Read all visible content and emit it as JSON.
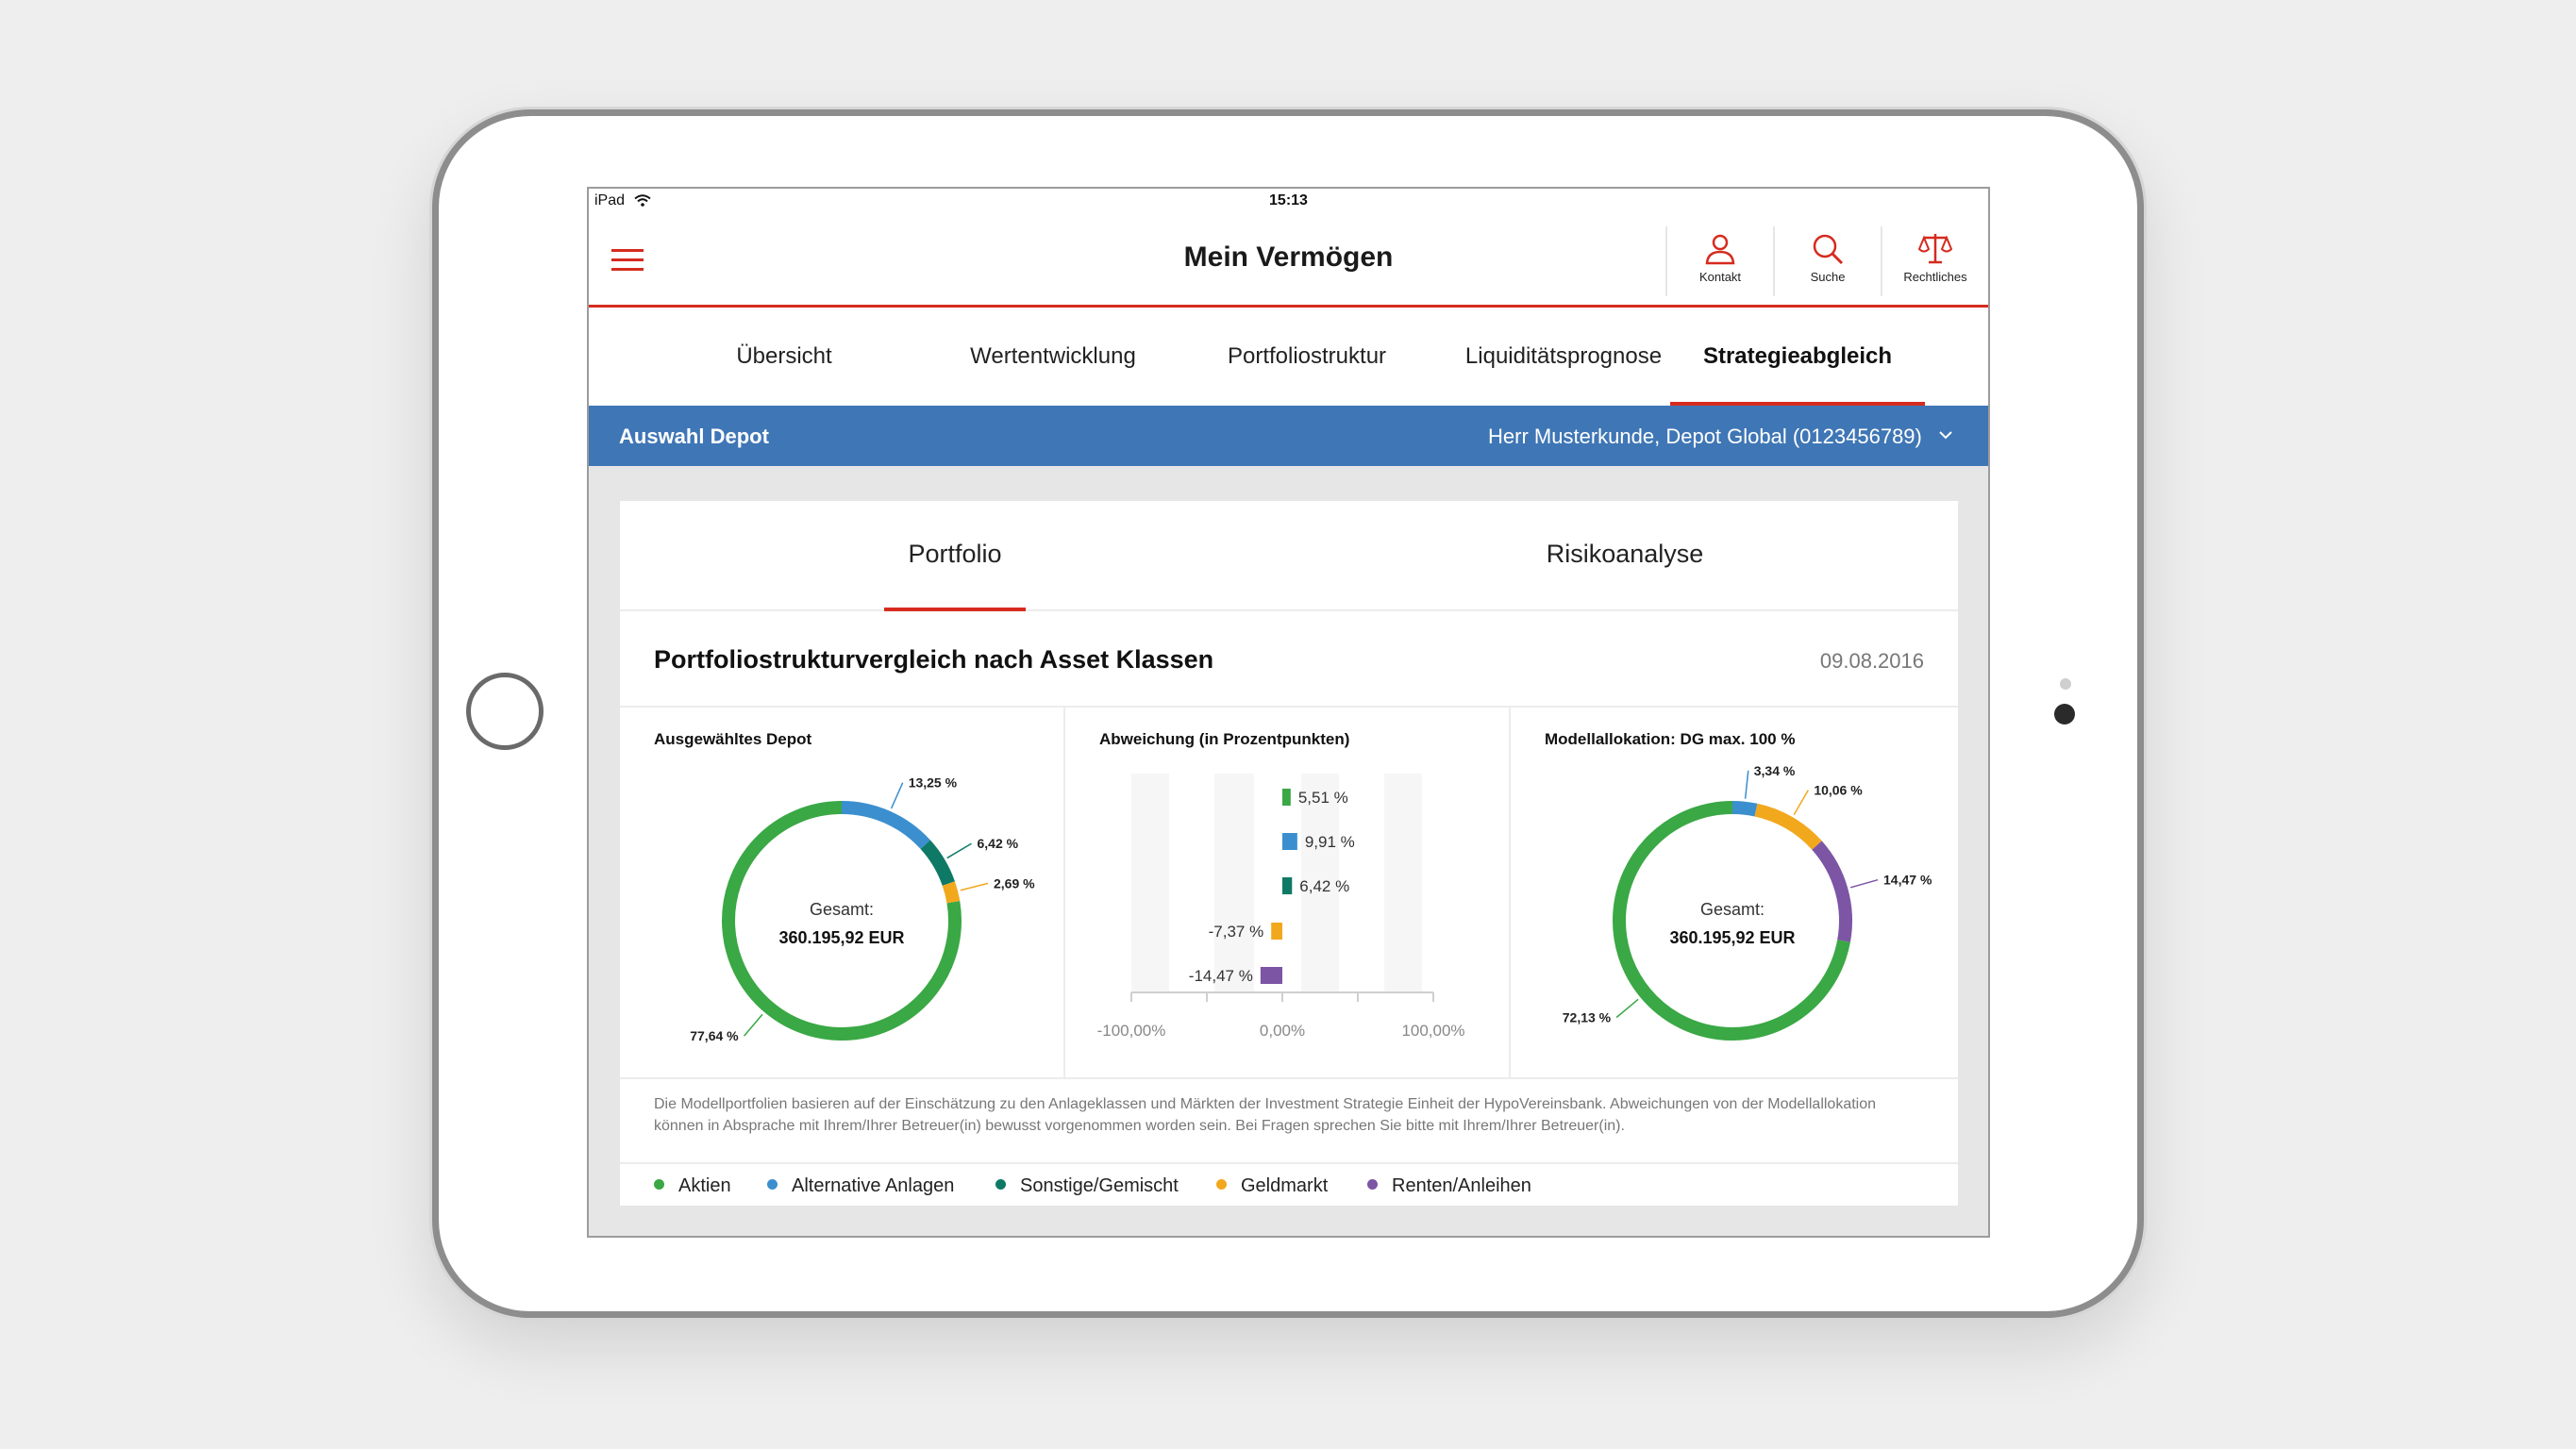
{
  "status": {
    "device": "iPad",
    "time": "15:13"
  },
  "header": {
    "title": "Mein Vermögen",
    "actions": [
      {
        "label": "Kontakt",
        "icon": "person-icon"
      },
      {
        "label": "Suche",
        "icon": "search-icon"
      },
      {
        "label": "Rechtliches",
        "icon": "scales-icon"
      }
    ]
  },
  "tabs": [
    "Übersicht",
    "Wertentwicklung",
    "Portfoliostruktur",
    "Liquiditätsprognose",
    "Strategieabgleich"
  ],
  "active_tab": "Strategieabgleich",
  "depot": {
    "label": "Auswahl Depot",
    "value": "Herr Musterkunde, Depot Global (0123456789)"
  },
  "subtabs": [
    "Portfolio",
    "Risikoanalyse"
  ],
  "active_subtab": "Portfolio",
  "section": {
    "title": "Portfoliostrukturvergleich nach Asset Klassen",
    "date": "09.08.2016"
  },
  "colors": {
    "aktien": "#3aa845",
    "alternative": "#3b8fcf",
    "sonstige": "#0e7a66",
    "geldmarkt": "#f2a81d",
    "renten": "#7c55a5",
    "accent": "#d52b1e",
    "depotbar": "#3f76b5"
  },
  "panels": {
    "depot_title": "Ausgewähltes Depot",
    "deviation_title": "Abweichung (in Prozentpunkten)",
    "model_title": "Modellallokation: DG max. 100 %"
  },
  "chart_data": [
    {
      "type": "pie",
      "title": "Ausgewähltes Depot",
      "center_label": "Gesamt:",
      "center_value": "360.195,92 EUR",
      "slices": [
        {
          "name": "Aktien",
          "value": 77.64,
          "label": "77,64 %"
        },
        {
          "name": "Alternative Anlagen",
          "value": 13.25,
          "label": "13,25 %"
        },
        {
          "name": "Sonstige/Gemischt",
          "value": 6.42,
          "label": "6,42 %"
        },
        {
          "name": "Geldmarkt",
          "value": 2.69,
          "label": "2,69 %"
        }
      ]
    },
    {
      "type": "bar",
      "title": "Abweichung (in Prozentpunkten)",
      "categories": [
        "Aktien",
        "Alternative Anlagen",
        "Sonstige/Gemischt",
        "Geldmarkt",
        "Renten/Anleihen"
      ],
      "values": [
        5.51,
        9.91,
        6.42,
        -7.37,
        -14.47
      ],
      "labels": [
        "5,51 %",
        "9,91 %",
        "6,42 %",
        "-7,37 %",
        "-14,47 %"
      ],
      "xlim": [
        -100,
        100
      ],
      "tick_labels": [
        "-100,00%",
        "0,00%",
        "100,00%"
      ]
    },
    {
      "type": "pie",
      "title": "Modellallokation: DG max. 100 %",
      "center_label": "Gesamt:",
      "center_value": "360.195,92 EUR",
      "slices": [
        {
          "name": "Aktien",
          "value": 72.13,
          "label": "72,13 %"
        },
        {
          "name": "Alternative Anlagen",
          "value": 3.34,
          "label": "3,34 %"
        },
        {
          "name": "Geldmarkt",
          "value": 10.06,
          "label": "10,06 %"
        },
        {
          "name": "Renten/Anleihen",
          "value": 14.47,
          "label": "14,47 %"
        }
      ]
    }
  ],
  "note": "Die Modellportfolien basieren auf der Einschätzung zu den Anlageklassen und Märkten der Investment Strategie Einheit der HypoVereinsbank. Abweichungen von der Modellallokation können in Absprache mit Ihrem/Ihrer Betreuer(in) bewusst vorgenommen worden sein. Bei Fragen sprechen Sie bitte mit Ihrem/Ihrer Betreuer(in).",
  "legend": [
    {
      "label": "Aktien",
      "color": "#3aa845"
    },
    {
      "label": "Alternative Anlagen",
      "color": "#3b8fcf"
    },
    {
      "label": "Sonstige/Gemischt",
      "color": "#0e7a66"
    },
    {
      "label": "Geldmarkt",
      "color": "#f2a81d"
    },
    {
      "label": "Renten/Anleihen",
      "color": "#7c55a5"
    }
  ]
}
